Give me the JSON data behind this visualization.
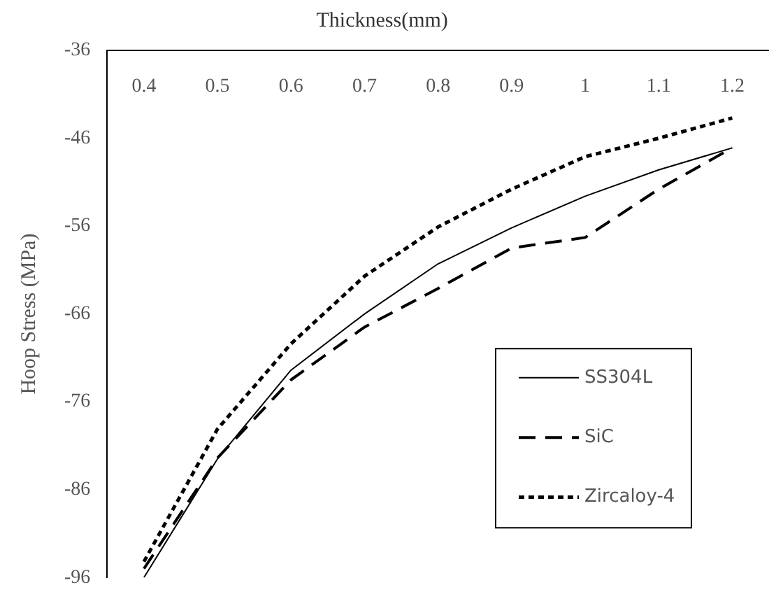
{
  "chart_data": {
    "type": "line",
    "xlabel": "Thickness(mm)",
    "ylabel": "Hoop Stress (MPa)",
    "categories": [
      "0.4",
      "0.5",
      "0.6",
      "0.7",
      "0.8",
      "0.9",
      "1",
      "1.1",
      "1.2"
    ],
    "ylim": [
      -96,
      -36
    ],
    "yticks": [
      -96,
      -86,
      -76,
      -66,
      -56,
      -46,
      -36
    ],
    "grid": false,
    "legend": "bottom right",
    "marker": "none",
    "series": [
      {
        "name": "SS304L",
        "color": "#000000",
        "line_style": "solid",
        "values": [
          -96.0,
          -82.5,
          -72.4,
          -66.0,
          -60.3,
          -56.2,
          -52.6,
          -49.6,
          -47.1
        ]
      },
      {
        "name": "SiC",
        "color": "#000000",
        "line_style": "dashed",
        "values": [
          -95.0,
          -82.4,
          -73.5,
          -67.5,
          -63.1,
          -58.5,
          -57.3,
          -51.8,
          -47.1
        ]
      },
      {
        "name": "Zircaloy-4",
        "color": "#000000",
        "line_style": "dotted",
        "values": [
          -94.2,
          -79.1,
          -69.4,
          -61.7,
          -56.1,
          -51.8,
          -48.1,
          -46.0,
          -43.7
        ]
      }
    ]
  }
}
